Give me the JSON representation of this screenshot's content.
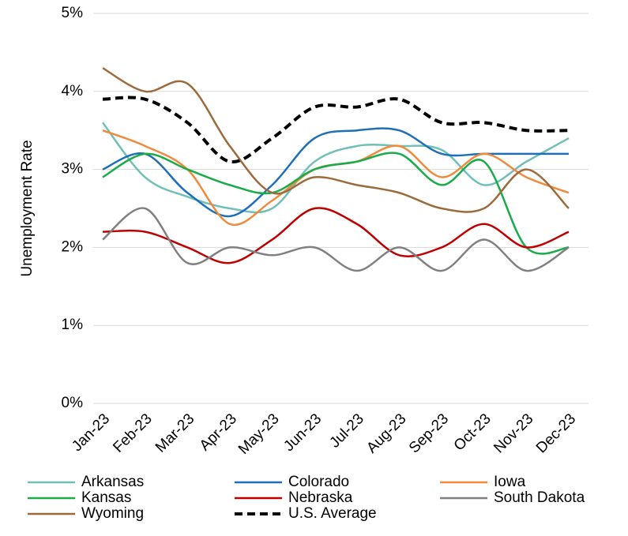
{
  "chart_data": {
    "type": "line",
    "y_label": "Unemployment Rate",
    "categories": [
      "Jan-23",
      "Feb-23",
      "Mar-23",
      "Apr-23",
      "May-23",
      "Jun-23",
      "Jul-23",
      "Aug-23",
      "Sep-23",
      "Oct-23",
      "Nov-23",
      "Dec-23"
    ],
    "series": [
      {
        "name": "Arkansas",
        "color": "#70bfb8",
        "values": [
          3.6,
          2.9,
          2.65,
          2.5,
          2.5,
          3.1,
          3.3,
          3.3,
          3.25,
          2.8,
          3.1,
          3.4
        ]
      },
      {
        "name": "Colorado",
        "color": "#1f6fb8",
        "values": [
          3.0,
          3.2,
          2.7,
          2.4,
          2.8,
          3.4,
          3.5,
          3.5,
          3.2,
          3.2,
          3.2,
          3.2
        ]
      },
      {
        "name": "Iowa",
        "color": "#f08a3c",
        "values": [
          3.5,
          3.3,
          3.0,
          2.3,
          2.6,
          3.0,
          3.1,
          3.3,
          2.9,
          3.2,
          2.9,
          2.7
        ]
      },
      {
        "name": "Kansas",
        "color": "#1aab4a",
        "values": [
          2.9,
          3.2,
          3.0,
          2.8,
          2.7,
          3.0,
          3.1,
          3.2,
          2.8,
          3.1,
          2.0,
          2.0
        ]
      },
      {
        "name": "Nebraska",
        "color": "#c00000",
        "values": [
          2.2,
          2.2,
          2.0,
          1.8,
          2.1,
          2.5,
          2.3,
          1.9,
          2.0,
          2.3,
          2.0,
          2.2
        ]
      },
      {
        "name": "South Dakota",
        "color": "#808080",
        "values": [
          2.1,
          2.5,
          1.8,
          2.0,
          1.9,
          2.0,
          1.7,
          2.0,
          1.7,
          2.1,
          1.7,
          2.0
        ]
      },
      {
        "name": "Wyoming",
        "color": "#9c6b3c",
        "values": [
          4.3,
          4.0,
          4.1,
          3.3,
          2.7,
          2.9,
          2.8,
          2.7,
          2.5,
          2.5,
          3.0,
          2.5
        ]
      },
      {
        "name": "U.S. Average",
        "color": "#000000",
        "dashed": true,
        "values": [
          3.9,
          3.9,
          3.6,
          3.1,
          3.4,
          3.8,
          3.8,
          3.9,
          3.6,
          3.6,
          3.5,
          3.5
        ]
      }
    ],
    "ylim": [
      0,
      5
    ],
    "yticks": [
      {
        "value": 0,
        "label": "0%"
      },
      {
        "value": 1,
        "label": "1%"
      },
      {
        "value": 2,
        "label": "2%"
      },
      {
        "value": 3,
        "label": "3%"
      },
      {
        "value": 4,
        "label": "4%"
      },
      {
        "value": 5,
        "label": "5%"
      }
    ],
    "grid": true,
    "legend": "bottom"
  }
}
